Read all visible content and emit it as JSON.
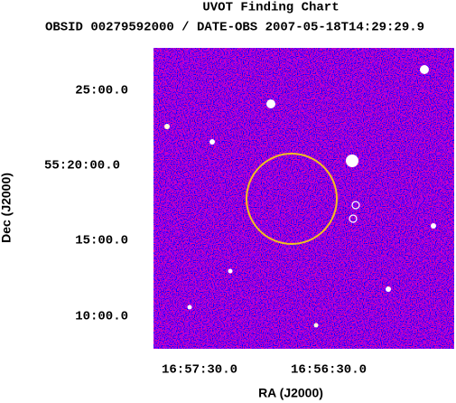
{
  "header": {
    "title": "UVOT Finding Chart",
    "subtitle": "OBSID 00279592000 / DATE-OBS 2007-05-18T14:29:29.9"
  },
  "axes": {
    "y_label": "Dec (J2000)",
    "x_label": "RA (J2000)",
    "y_ticks": [
      "25:00.0",
      "55:20:00.0",
      "15:00.0",
      "10:00.0"
    ],
    "x_ticks": [
      "16:57:30.0",
      "16:56:30.0"
    ]
  }
}
